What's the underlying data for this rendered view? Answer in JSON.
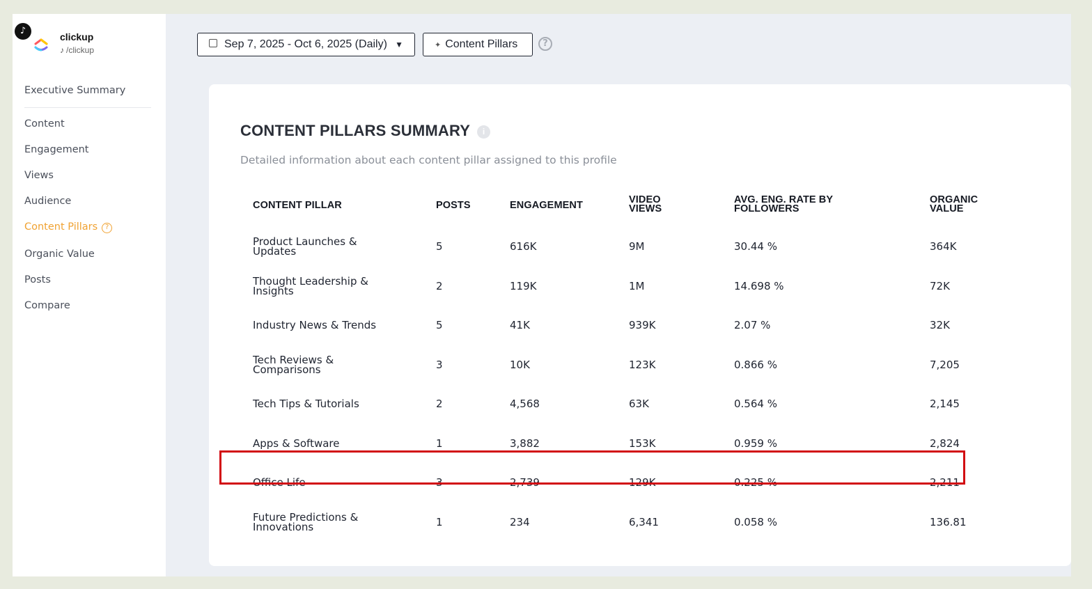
{
  "profile": {
    "name": "clickup",
    "handle": "/clickup"
  },
  "nav": {
    "items": [
      "Executive Summary",
      "Content",
      "Engagement",
      "Views",
      "Audience",
      "Content Pillars",
      "Organic Value",
      "Posts",
      "Compare"
    ],
    "active": "Content Pillars"
  },
  "toolbar": {
    "date_range": "Sep 7, 2025 - Oct 6, 2025 (Daily)",
    "pillars_button": "Content Pillars"
  },
  "card": {
    "title": "CONTENT PILLARS SUMMARY",
    "subtitle": "Detailed information about each content pillar assigned to this profile"
  },
  "table": {
    "headers": {
      "pillar": "CONTENT PILLAR",
      "posts": "POSTS",
      "engagement": "ENGAGEMENT",
      "views_1": "VIDEO",
      "views_2": "VIEWS",
      "rate_1": "AVG. ENG. RATE BY",
      "rate_2": "FOLLOWERS",
      "value_1": "ORGANIC",
      "value_2": "VALUE"
    },
    "rows": [
      {
        "pillar": "Product Launches & Updates",
        "posts": "5",
        "engagement": "616K",
        "views": "9M",
        "rate": "30.44 %",
        "value": "364K"
      },
      {
        "pillar": "Thought Leadership & Insights",
        "posts": "2",
        "engagement": "119K",
        "views": "1M",
        "rate": "14.698 %",
        "value": "72K"
      },
      {
        "pillar": "Industry News & Trends",
        "posts": "5",
        "engagement": "41K",
        "views": "939K",
        "rate": "2.07 %",
        "value": "32K"
      },
      {
        "pillar": "Tech Reviews & Comparisons",
        "posts": "3",
        "engagement": "10K",
        "views": "123K",
        "rate": "0.866 %",
        "value": "7,205"
      },
      {
        "pillar": "Tech Tips & Tutorials",
        "posts": "2",
        "engagement": "4,568",
        "views": "63K",
        "rate": "0.564 %",
        "value": "2,145"
      },
      {
        "pillar": "Apps & Software",
        "posts": "1",
        "engagement": "3,882",
        "views": "153K",
        "rate": "0.959 %",
        "value": "2,824"
      },
      {
        "pillar": "Office Life",
        "posts": "3",
        "engagement": "2,739",
        "views": "129K",
        "rate": "0.225 %",
        "value": "2,211"
      },
      {
        "pillar": "Future Predictions & Innovations",
        "posts": "1",
        "engagement": "234",
        "views": "6,341",
        "rate": "0.058 %",
        "value": "136.81"
      }
    ],
    "highlighted_row": "Office Life"
  },
  "colors": {
    "accent": "#f0a232",
    "highlight_border": "#d20a11"
  }
}
